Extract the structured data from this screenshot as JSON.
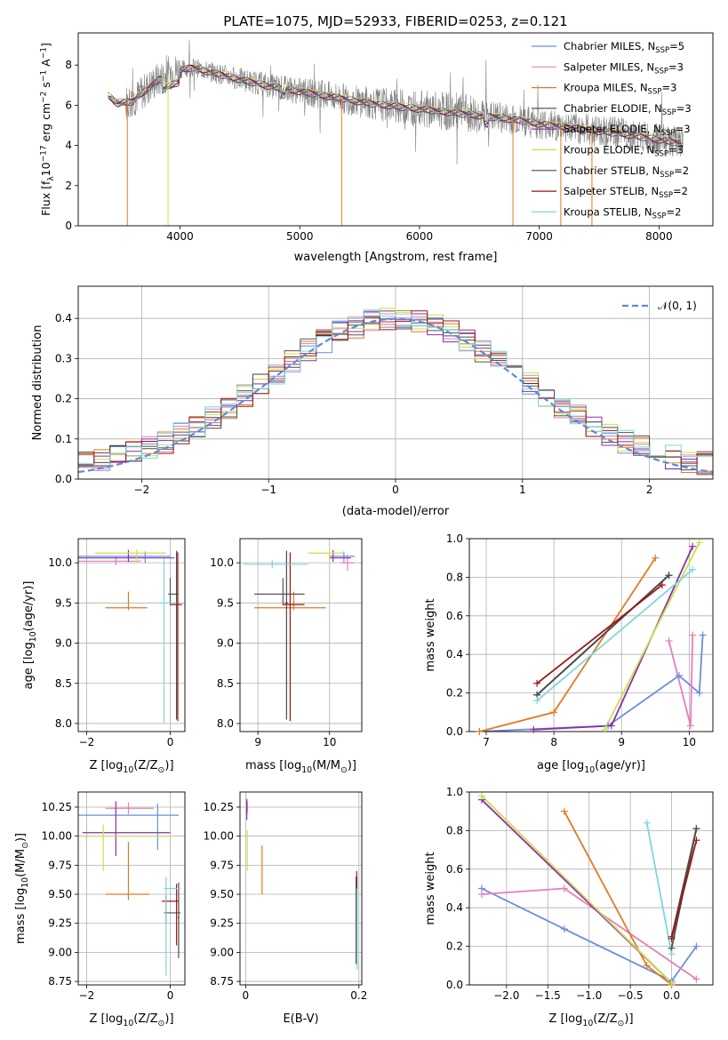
{
  "title": "PLATE=1075, MJD=52933, FIBERID=0253, z=0.121",
  "colors": {
    "chabrier_miles": "#6a8fdc",
    "salpeter_miles": "#e57fb9",
    "kroupa_miles": "#e37a22",
    "chabrier_elodie": "#555555",
    "salpeter_elodie": "#8e2ea8",
    "kroupa_elodie": "#c8e14a",
    "chabrier_stelib": "#4a4a4a",
    "salpeter_stelib": "#a11414",
    "kroupa_stelib": "#7fd6dc",
    "data": "#808080",
    "normal": "#5b8bd6",
    "grid": "#b0b0b0"
  },
  "chart_data": [
    {
      "id": "spectrum",
      "type": "line",
      "xlabel": "wavelength [Angstrom, rest frame]",
      "ylabel": "Flux [f_λ10^-17 erg cm^-2 s^-1 A^-1]",
      "ylabel_parts": [
        "Flux [f",
        "λ",
        "10",
        "−17",
        " erg cm",
        "−2",
        " s",
        "−1",
        " A",
        "−1",
        "]"
      ],
      "xlim": [
        3150,
        8450
      ],
      "ylim": [
        0,
        9.6
      ],
      "xticks": [
        4000,
        5000,
        6000,
        7000,
        8000
      ],
      "yticks": [
        0,
        2,
        4,
        6,
        8
      ],
      "grid": false,
      "legend_position": "top-right",
      "legend": [
        {
          "prefix": "Chabrier MILES, N",
          "sub": "SSP",
          "suffix": "=5",
          "color": "#6a8fdc"
        },
        {
          "prefix": "Salpeter MILES, N",
          "sub": "SSP",
          "suffix": "=3",
          "color": "#e57fb9"
        },
        {
          "prefix": "Kroupa MILES, N",
          "sub": "SSP",
          "suffix": "=3",
          "color": "#e37a22"
        },
        {
          "prefix": "Chabrier ELODIE, N",
          "sub": "SSP",
          "suffix": "=3",
          "color": "#555555"
        },
        {
          "prefix": "Salpeter ELODIE, N",
          "sub": "SSP",
          "suffix": "=3",
          "color": "#8e2ea8"
        },
        {
          "prefix": "Kroupa ELODIE, N",
          "sub": "SSP",
          "suffix": "=3",
          "color": "#c8e14a"
        },
        {
          "prefix": "Chabrier STELIB, N",
          "sub": "SSP",
          "suffix": "=2",
          "color": "#4a4a4a"
        },
        {
          "prefix": "Salpeter STELIB, N",
          "sub": "SSP",
          "suffix": "=2",
          "color": "#a11414"
        },
        {
          "prefix": "Kroupa STELIB, N",
          "sub": "SSP",
          "suffix": "=2",
          "color": "#7fd6dc"
        }
      ],
      "continuum": {
        "x": [
          3400,
          3480,
          3600,
          3800,
          3950,
          4100,
          4300,
          4500,
          4800,
          5000,
          5300,
          5600,
          5900,
          6200,
          6500,
          6800,
          7100,
          7400,
          7700,
          8000,
          8200
        ],
        "y": [
          6.5,
          6.1,
          6.2,
          7.2,
          7.7,
          7.9,
          7.6,
          7.3,
          6.9,
          6.7,
          6.4,
          6.1,
          5.9,
          5.7,
          5.5,
          5.3,
          5.0,
          4.8,
          4.6,
          4.3,
          4.1
        ]
      }
    },
    {
      "id": "residuals",
      "type": "histogram",
      "xlabel": "(data-model)/error",
      "ylabel": "Normed distribution",
      "xlim": [
        -2.5,
        2.5
      ],
      "ylim": [
        0,
        0.48
      ],
      "xticks": [
        -2,
        -1,
        0,
        1,
        2
      ],
      "yticks": [
        0.0,
        0.1,
        0.2,
        0.3,
        0.4
      ],
      "grid": true,
      "legend_position": "top-right",
      "normal_label": "𝒩(0, 1)",
      "bins": 40
    },
    {
      "id": "age_vs_Z",
      "type": "errorbar",
      "xlabel_parts": [
        "Z [log",
        "10",
        "(Z/Z",
        "⊙",
        ")]"
      ],
      "ylabel_parts": [
        "age  [log",
        "10",
        "(age/yr)]"
      ],
      "xlim": [
        -2.2,
        0.35
      ],
      "ylim": [
        7.9,
        10.3
      ],
      "xticks": [
        -2,
        0
      ],
      "yticks": [
        8.0,
        8.5,
        9.0,
        9.5,
        10.0
      ],
      "grid": true,
      "points": [
        {
          "x": -0.6,
          "xe": [
            1.6,
            0.6
          ],
          "y": 10.08,
          "ye": [
            0.08,
            0.06
          ],
          "color": "#6a8fdc"
        },
        {
          "x": -1.3,
          "xe": [
            0.95,
            0.6
          ],
          "y": 10.02,
          "ye": [
            0.05,
            0.06
          ],
          "color": "#e57fb9"
        },
        {
          "x": -1.0,
          "xe": [
            0.55,
            0.45
          ],
          "y": 9.44,
          "ye": [
            0.03,
            0.2
          ],
          "color": "#e37a22"
        },
        {
          "x": 0.0,
          "xe": [
            0.05,
            0.2
          ],
          "y": 9.61,
          "ye": [
            0.14,
            0.2
          ],
          "color": "#555555"
        },
        {
          "x": -1.0,
          "xe": [
            1.3,
            1.1
          ],
          "y": 10.06,
          "ye": [
            0.05,
            0.1
          ],
          "color": "#8e2ea8"
        },
        {
          "x": -0.8,
          "xe": [
            1.0,
            0.7
          ],
          "y": 10.12,
          "ye": [
            0.12,
            0.05
          ],
          "color": "#c8e14a"
        },
        {
          "x": 0.15,
          "xe": [
            0.02,
            0.02
          ],
          "y": 9.5,
          "ye": [
            1.45,
            0.65
          ],
          "color": "#4a4a4a"
        },
        {
          "x": 0.18,
          "xe": [
            0.18,
            0.1
          ],
          "y": 9.48,
          "ye": [
            1.45,
            0.65
          ],
          "color": "#a11414"
        },
        {
          "x": -0.15,
          "xe": [
            0.12,
            0.3
          ],
          "y": 9.5,
          "ye": [
            1.5,
            0.55
          ],
          "color": "#7fd6dc"
        }
      ]
    },
    {
      "id": "age_vs_mass",
      "type": "errorbar",
      "xlabel_parts": [
        "mass [log",
        "10",
        "(M/M",
        "⊙",
        ")]"
      ],
      "ylabel_parts": [],
      "xlim": [
        8.75,
        10.45
      ],
      "ylim": [
        7.9,
        10.3
      ],
      "xticks": [
        9,
        10
      ],
      "yticks": [
        8.0,
        8.5,
        9.0,
        9.5,
        10.0
      ],
      "grid": true,
      "points": [
        {
          "x": 10.2,
          "xe": [
            0.2,
            0.15
          ],
          "y": 10.08,
          "ye": [
            0.08,
            0.06
          ],
          "color": "#6a8fdc"
        },
        {
          "x": 10.25,
          "xe": [
            0.1,
            0.1
          ],
          "y": 10.0,
          "ye": [
            0.1,
            0.1
          ],
          "color": "#e57fb9"
        },
        {
          "x": 9.5,
          "xe": [
            0.55,
            0.45
          ],
          "y": 9.44,
          "ye": [
            0.03,
            0.2
          ],
          "color": "#e37a22"
        },
        {
          "x": 9.35,
          "xe": [
            0.4,
            0.3
          ],
          "y": 9.61,
          "ye": [
            0.14,
            0.2
          ],
          "color": "#555555"
        },
        {
          "x": 10.05,
          "xe": [
            0.05,
            0.25
          ],
          "y": 10.06,
          "ye": [
            0.05,
            0.1
          ],
          "color": "#8e2ea8"
        },
        {
          "x": 10.0,
          "xe": [
            0.3,
            0.2
          ],
          "y": 10.12,
          "ye": [
            0.12,
            0.05
          ],
          "color": "#c8e14a"
        },
        {
          "x": 9.4,
          "xe": [
            0.02,
            0.02
          ],
          "y": 9.5,
          "ye": [
            1.45,
            0.65
          ],
          "color": "#4a4a4a"
        },
        {
          "x": 9.45,
          "xe": [
            0.1,
            0.2
          ],
          "y": 9.48,
          "ye": [
            1.45,
            0.65
          ],
          "color": "#a11414"
        },
        {
          "x": 9.2,
          "xe": [
            0.4,
            0.5
          ],
          "y": 9.98,
          "ye": [
            0.05,
            0.05
          ],
          "color": "#7fd6dc"
        }
      ]
    },
    {
      "id": "weight_vs_age",
      "type": "line",
      "xlabel_parts": [
        "age  [log",
        "10",
        "(age/yr)]"
      ],
      "ylabel": "mass weight",
      "xlim": [
        6.75,
        10.35
      ],
      "ylim": [
        0,
        1.0
      ],
      "xticks": [
        7,
        8,
        9,
        10
      ],
      "yticks": [
        0.0,
        0.2,
        0.4,
        0.6,
        0.8,
        1.0
      ],
      "grid": true,
      "series": [
        {
          "color": "#6a8fdc",
          "x": [
            6.9,
            8.8,
            9.85,
            10.15,
            10.2
          ],
          "y": [
            0.0,
            0.03,
            0.29,
            0.2,
            0.5
          ]
        },
        {
          "color": "#e57fb9",
          "x": [
            9.7,
            10.02,
            10.05
          ],
          "y": [
            0.47,
            0.03,
            0.5
          ]
        },
        {
          "color": "#e37a22",
          "x": [
            6.9,
            8.0,
            9.5
          ],
          "y": [
            0.0,
            0.1,
            0.9
          ]
        },
        {
          "color": "#555555",
          "x": [
            7.75,
            9.7
          ],
          "y": [
            0.19,
            0.81
          ]
        },
        {
          "color": "#8e2ea8",
          "x": [
            7.7,
            8.85,
            10.05
          ],
          "y": [
            0.01,
            0.03,
            0.96
          ]
        },
        {
          "color": "#c8e14a",
          "x": [
            8.75,
            10.15
          ],
          "y": [
            0.01,
            0.98
          ]
        },
        {
          "color": "#4a4a4a",
          "x": [
            7.75,
            9.7
          ],
          "y": [
            0.19,
            0.81
          ]
        },
        {
          "color": "#a11414",
          "x": [
            7.75,
            9.6
          ],
          "y": [
            0.25,
            0.76
          ]
        },
        {
          "color": "#7fd6dc",
          "x": [
            7.75,
            10.05
          ],
          "y": [
            0.16,
            0.84
          ]
        }
      ]
    },
    {
      "id": "mass_vs_Z",
      "type": "errorbar",
      "xlabel_parts": [
        "Z [log",
        "10",
        "(Z/Z",
        "⊙",
        ")]"
      ],
      "ylabel_parts": [
        "mass [log",
        "10",
        "(M/M",
        "⊙",
        ")]"
      ],
      "xlim": [
        -2.2,
        0.35
      ],
      "ylim": [
        8.72,
        10.38
      ],
      "xticks": [
        -2,
        0
      ],
      "yticks": [
        8.75,
        9.0,
        9.25,
        9.5,
        9.75,
        10.0,
        10.25
      ],
      "grid": true,
      "points": [
        {
          "x": -0.3,
          "xe": [
            1.9,
            0.5
          ],
          "y": 10.18,
          "ye": [
            0.3,
            0.1
          ],
          "color": "#6a8fdc"
        },
        {
          "x": -1.0,
          "xe": [
            0.55,
            0.6
          ],
          "y": 10.24,
          "ye": [
            0.05,
            0.05
          ],
          "color": "#e57fb9"
        },
        {
          "x": -1.0,
          "xe": [
            0.55,
            0.5
          ],
          "y": 9.5,
          "ye": [
            0.05,
            0.45
          ],
          "color": "#e37a22"
        },
        {
          "x": -0.1,
          "xe": [
            0.05,
            0.35
          ],
          "y": 9.34,
          "ye": [
            0.1,
            0.15
          ],
          "color": "#555555"
        },
        {
          "x": -1.3,
          "xe": [
            0.8,
            1.3
          ],
          "y": 10.03,
          "ye": [
            0.2,
            0.27
          ],
          "color": "#8e2ea8"
        },
        {
          "x": -1.6,
          "xe": [
            0.5,
            1.6
          ],
          "y": 10.0,
          "ye": [
            0.3,
            0.1
          ],
          "color": "#c8e14a"
        },
        {
          "x": 0.2,
          "xe": [
            0.02,
            0.02
          ],
          "y": 9.3,
          "ye": [
            0.35,
            0.3
          ],
          "color": "#4a4a4a"
        },
        {
          "x": 0.15,
          "xe": [
            0.35,
            0.05
          ],
          "y": 9.44,
          "ye": [
            0.38,
            0.15
          ],
          "color": "#a11414"
        },
        {
          "x": -0.1,
          "xe": [
            0.05,
            0.35
          ],
          "y": 9.55,
          "ye": [
            0.75,
            0.1
          ],
          "color": "#7fd6dc"
        }
      ]
    },
    {
      "id": "mass_vs_ebv",
      "type": "errorbar",
      "xlabel_parts": [
        "E(B-V)"
      ],
      "ylabel_parts": [],
      "xlim": [
        -0.01,
        0.205
      ],
      "ylim": [
        8.72,
        10.38
      ],
      "xticks": [
        0.0,
        0.2
      ],
      "yticks": [
        8.75,
        9.0,
        9.25,
        9.5,
        9.75,
        10.0,
        10.25
      ],
      "grid": true,
      "points": [
        {
          "x": 0.003,
          "xe": [
            0.001,
            0.001
          ],
          "y": 10.25,
          "ye": [
            0.05,
            0.05
          ],
          "color": "#e57fb9"
        },
        {
          "x": 0.002,
          "xe": [
            0.001,
            0.001
          ],
          "y": 10.24,
          "ye": [
            0.1,
            0.08
          ],
          "color": "#8e2ea8"
        },
        {
          "x": 0.003,
          "xe": [
            0.001,
            0.001
          ],
          "y": 10.0,
          "ye": [
            0.3,
            0.05
          ],
          "color": "#c8e14a"
        },
        {
          "x": 0.029,
          "xe": [
            0.0005,
            0.0005
          ],
          "y": 9.72,
          "ye": [
            0.22,
            0.2
          ],
          "color": "#e37a22"
        },
        {
          "x": 0.197,
          "xe": [
            0.0005,
            0.0005
          ],
          "y": 9.35,
          "ye": [
            0.5,
            0.3
          ],
          "color": "#7fd6dc"
        },
        {
          "x": 0.195,
          "xe": [
            0.0005,
            0.0005
          ],
          "y": 9.35,
          "ye": [
            0.45,
            0.3
          ],
          "color": "#4a4a4a"
        },
        {
          "x": 0.196,
          "xe": [
            0.0005,
            0.0005
          ],
          "y": 9.6,
          "ye": [
            0.05,
            0.1
          ],
          "color": "#a11414"
        }
      ]
    },
    {
      "id": "weight_vs_Z",
      "type": "line",
      "xlabel_parts": [
        "Z [log",
        "10",
        "(Z/Z",
        "⊙",
        ")]"
      ],
      "ylabel": "mass weight",
      "xlim": [
        -2.45,
        0.5
      ],
      "ylim": [
        0,
        1.0
      ],
      "xticks": [
        -2.0,
        -1.5,
        -1.0,
        -0.5,
        0.0
      ],
      "yticks": [
        0.0,
        0.2,
        0.4,
        0.6,
        0.8,
        1.0
      ],
      "xtick_labels": [
        "−2.0",
        "−1.5",
        "−1.0",
        "−0.5",
        "0.0"
      ],
      "grid": true,
      "series": [
        {
          "color": "#6a8fdc",
          "x": [
            -2.3,
            -1.3,
            0.0,
            0.3
          ],
          "y": [
            0.5,
            0.29,
            0.02,
            0.2
          ]
        },
        {
          "color": "#e57fb9",
          "x": [
            -2.3,
            -1.3,
            0.3
          ],
          "y": [
            0.47,
            0.5,
            0.03
          ]
        },
        {
          "color": "#e37a22",
          "x": [
            -1.3,
            -0.3,
            0.0
          ],
          "y": [
            0.9,
            0.1,
            0.0
          ]
        },
        {
          "color": "#555555",
          "x": [
            0.0,
            0.3
          ],
          "y": [
            0.19,
            0.81
          ]
        },
        {
          "color": "#8e2ea8",
          "x": [
            -2.3,
            0.0
          ],
          "y": [
            0.96,
            0.01
          ]
        },
        {
          "color": "#c8e14a",
          "x": [
            -2.3,
            0.0
          ],
          "y": [
            0.98,
            0.01
          ]
        },
        {
          "color": "#4a4a4a",
          "x": [
            0.0,
            0.3
          ],
          "y": [
            0.25,
            0.81
          ]
        },
        {
          "color": "#a11414",
          "x": [
            0.0,
            0.3
          ],
          "y": [
            0.24,
            0.75
          ]
        },
        {
          "color": "#7fd6dc",
          "x": [
            -0.3,
            0.0
          ],
          "y": [
            0.84,
            0.16
          ]
        }
      ]
    }
  ]
}
